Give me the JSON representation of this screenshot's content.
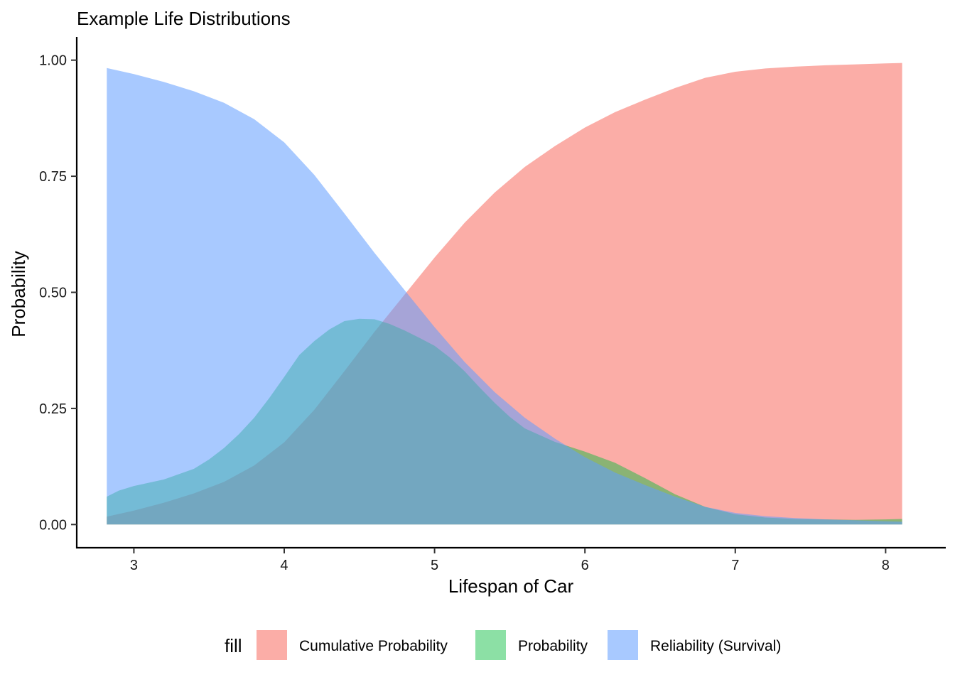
{
  "chart_data": {
    "type": "area",
    "title": "Example Life Distributions",
    "xlabel": "Lifespan of Car",
    "ylabel": "Probability",
    "xlim": [
      2.62,
      8.4
    ],
    "ylim": [
      -0.05,
      1.05
    ],
    "x_ticks": [
      3,
      4,
      5,
      6,
      7,
      8
    ],
    "x_tick_labels": [
      "3",
      "4",
      "5",
      "6",
      "7",
      "8"
    ],
    "y_ticks": [
      0,
      0.25,
      0.5,
      0.75,
      1.0
    ],
    "y_tick_labels": [
      "0.00",
      "0.25",
      "0.50",
      "0.75",
      "1.00"
    ],
    "grid": false,
    "legend": {
      "title": "fill",
      "position": "bottom",
      "entries": [
        "Cumulative Probability",
        "Probability",
        "Reliability (Survival)"
      ]
    },
    "series": [
      {
        "name": "Cumulative Probability",
        "color": "#F8766D",
        "opacity": 0.6,
        "x": [
          2.82,
          3.0,
          3.2,
          3.4,
          3.6,
          3.8,
          4.0,
          4.2,
          4.4,
          4.6,
          4.8,
          5.0,
          5.2,
          5.4,
          5.6,
          5.8,
          6.0,
          6.2,
          6.4,
          6.6,
          6.8,
          7.0,
          7.2,
          7.4,
          7.6,
          7.8,
          8.0,
          8.11
        ],
        "values": [
          0.017,
          0.03,
          0.047,
          0.067,
          0.092,
          0.127,
          0.177,
          0.247,
          0.33,
          0.415,
          0.495,
          0.575,
          0.65,
          0.715,
          0.77,
          0.815,
          0.855,
          0.888,
          0.915,
          0.94,
          0.962,
          0.975,
          0.982,
          0.986,
          0.989,
          0.991,
          0.993,
          0.994
        ]
      },
      {
        "name": "Probability",
        "color": "#00BA38",
        "opacity": 0.45,
        "x": [
          2.82,
          2.9,
          3.0,
          3.2,
          3.4,
          3.5,
          3.6,
          3.7,
          3.8,
          3.9,
          4.0,
          4.1,
          4.2,
          4.3,
          4.4,
          4.5,
          4.6,
          4.7,
          4.8,
          4.9,
          5.0,
          5.1,
          5.2,
          5.3,
          5.4,
          5.5,
          5.6,
          5.8,
          6.0,
          6.2,
          6.4,
          6.6,
          6.8,
          7.0,
          7.2,
          7.4,
          7.6,
          7.8,
          8.0,
          8.11
        ],
        "values": [
          0.06,
          0.073,
          0.083,
          0.097,
          0.12,
          0.14,
          0.165,
          0.195,
          0.23,
          0.272,
          0.318,
          0.365,
          0.395,
          0.42,
          0.438,
          0.443,
          0.442,
          0.432,
          0.418,
          0.402,
          0.385,
          0.36,
          0.33,
          0.295,
          0.262,
          0.232,
          0.207,
          0.178,
          0.157,
          0.133,
          0.1,
          0.065,
          0.038,
          0.022,
          0.015,
          0.012,
          0.011,
          0.01,
          0.011,
          0.012
        ]
      },
      {
        "name": "Reliability (Survival)",
        "color": "#619CFF",
        "opacity": 0.55,
        "x": [
          2.82,
          3.0,
          3.2,
          3.4,
          3.6,
          3.8,
          4.0,
          4.2,
          4.4,
          4.6,
          4.8,
          5.0,
          5.2,
          5.4,
          5.6,
          5.8,
          6.0,
          6.2,
          6.4,
          6.6,
          6.8,
          7.0,
          7.2,
          7.4,
          7.6,
          7.8,
          8.0,
          8.11
        ],
        "values": [
          0.983,
          0.97,
          0.953,
          0.933,
          0.908,
          0.873,
          0.823,
          0.753,
          0.67,
          0.585,
          0.505,
          0.425,
          0.35,
          0.285,
          0.23,
          0.185,
          0.145,
          0.112,
          0.085,
          0.06,
          0.038,
          0.025,
          0.018,
          0.014,
          0.011,
          0.009,
          0.007,
          0.006
        ]
      }
    ]
  }
}
